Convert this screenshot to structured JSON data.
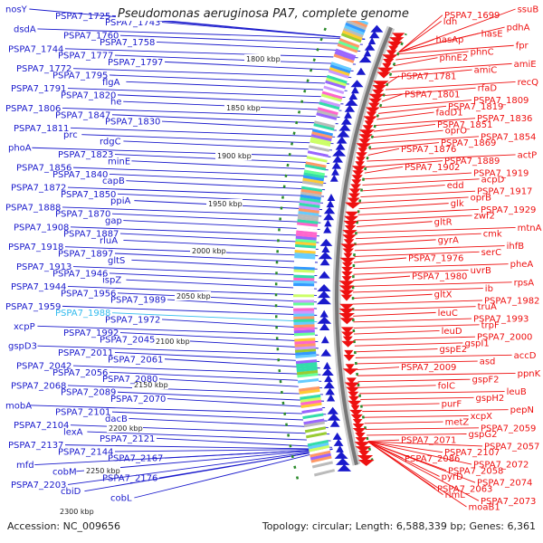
{
  "title": "Pseudomonas aeruginosa PA7, complete genome",
  "accession_text": "Accession: NC_009656",
  "summary_text": "Topology: circular; Length: 6,588,339 bp; Genes: 6,361",
  "colors": {
    "forward_strand": "#1a1acc",
    "reverse_strand": "#ee1111",
    "highlight_label": "#33bbee",
    "backbone": "#777777",
    "tick_green": "#2a8a2a"
  },
  "kbp_ticks": [
    "1800 kbp",
    "1850 kbp",
    "1900 kbp",
    "1950 kbp",
    "2000 kbp",
    "2050 kbp",
    "2100 kbp",
    "2150 kbp",
    "2200 kbp",
    "2250 kbp",
    "2300 kbp"
  ],
  "left_labels": [
    "nosY",
    "PSPA7_1725",
    "PSPA7_1743",
    "dsdA",
    "PSPA7_1760",
    "PSPA7_1758",
    "PSPA7_1744",
    "PSPA7_1777",
    "PSPA7_1797",
    "PSPA7_1772",
    "PSPA7_1795",
    "flgA",
    "PSPA7_1791",
    "PSPA7_1820",
    "he",
    "PSPA7_1806",
    "PSPA7_1847",
    "PSPA7_1830",
    "PSPA7_1811",
    "prc",
    "rdgC",
    "phoA",
    "PSPA7_1823",
    "minE",
    "PSPA7_1856",
    "PSPA7_1840",
    "capB",
    "PSPA7_1872",
    "PSPA7_1850",
    "ppiA",
    "PSPA7_1888",
    "PSPA7_1870",
    "gap",
    "PSPA7_1908",
    "PSPA7_1887",
    "rluA",
    "PSPA7_1918",
    "PSPA7_1897",
    "gltS",
    "PSPA7_1913",
    "PSPA7_1946",
    "ispZ",
    "PSPA7_1944",
    "PSPA7_1956",
    "PSPA7_1989",
    "PSPA7_1959",
    "PSPA7_1988",
    "PSPA7_1972",
    "xcpP",
    "PSPA7_1992",
    "PSPA7_2045",
    "gspD3",
    "PSPA7_2011",
    "PSPA7_2061",
    "PSPA7_2042",
    "PSPA7_2056",
    "PSPA7_2080",
    "PSPA7_2068",
    "PSPA7_2089",
    "PSPA7_2070",
    "mobA",
    "PSPA7_2101",
    "dacB",
    "PSPA7_2104",
    "lexA",
    "PSPA7_2121",
    "PSPA7_2137",
    "PSPA7_2144",
    "PSPA7_2167",
    "mfd",
    "cobM",
    "PSPA7_2176",
    "PSPA7_2203",
    "cbiD",
    "cobL"
  ],
  "right_labels": [
    "ssuB",
    "PSPA7_1699",
    "ldh",
    "pdhA",
    "hasE",
    "hasAp",
    "fpr",
    "phnC",
    "phnE2",
    "amiE",
    "amiC",
    "PSPA7_1781",
    "recQ",
    "rfaD",
    "PSPA7_1801",
    "PSPA7_1809",
    "PSPA7_1819",
    "fadD1",
    "PSPA7_1836",
    "PSPA7_1851",
    "oprO",
    "PSPA7_1854",
    "PSPA7_1869",
    "PSPA7_1876",
    "actP",
    "PSPA7_1889",
    "PSPA7_1902",
    "PSPA7_1919",
    "acpD",
    "edd",
    "PSPA7_1917",
    "oprB",
    "glk",
    "PSPA7_1929",
    "zwf2",
    "gltR",
    "mtnA",
    "cmk",
    "gyrA",
    "ihfB",
    "serC",
    "PSPA7_1976",
    "pheA",
    "uvrB",
    "PSPA7_1980",
    "rpsA",
    "ib",
    "gltX",
    "PSPA7_1982",
    "truA",
    "leuC",
    "PSPA7_1993",
    "trpF",
    "leuD",
    "PSPA7_2000",
    "gspI1",
    "gspE2",
    "accD",
    "asd",
    "PSPA7_2009",
    "ppnK",
    "gspF2",
    "folC",
    "leuB",
    "gspH2",
    "purF",
    "pepN",
    "xcpX",
    "metZ",
    "PSPA7_2059",
    "gspG2",
    "PSPA7_2071",
    "PSPA7_2057",
    "PSPA7_2107",
    "PSPA7_2086",
    "PSPA7_2072",
    "PSPA7_2058",
    "pyrD",
    "PSPA7_2074",
    "PSPA7_2063",
    "rlmL",
    "PSPA7_2073",
    "moaB1"
  ]
}
